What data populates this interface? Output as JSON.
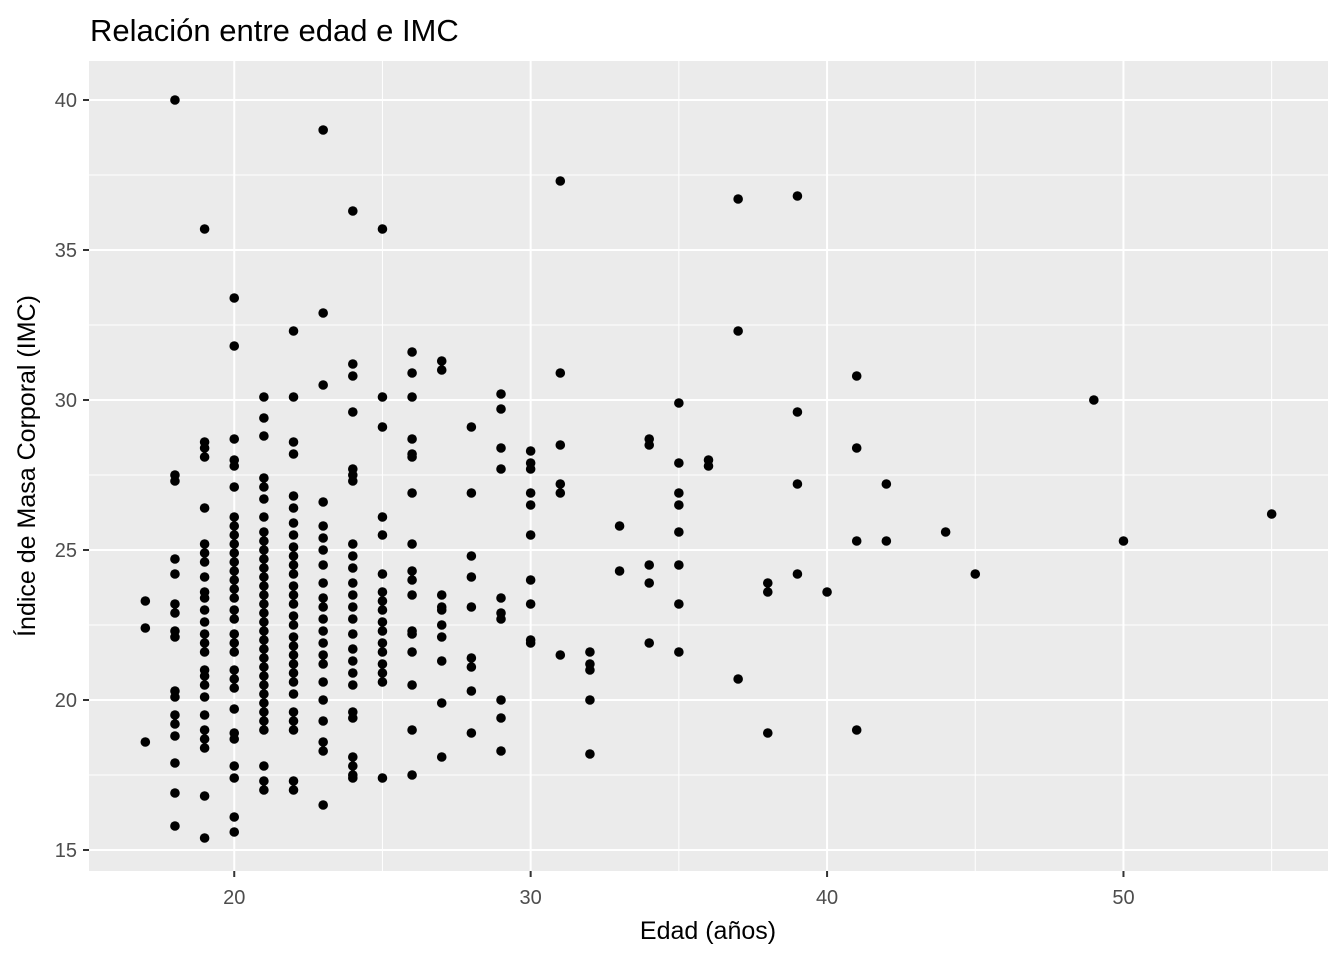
{
  "chart_data": {
    "type": "scatter",
    "title": "Relación entre edad e IMC",
    "xlabel": "Edad (años)",
    "ylabel": "Índice de Masa Corporal (IMC)",
    "xlim": [
      15.1,
      56.9
    ],
    "ylim": [
      14.3,
      41.3
    ],
    "x_ticks": [
      20,
      30,
      40,
      50
    ],
    "x_tick_labels": [
      "20",
      "30",
      "40",
      "50"
    ],
    "y_ticks": [
      15,
      20,
      25,
      30,
      35,
      40
    ],
    "y_tick_labels": [
      "15",
      "20",
      "25",
      "30",
      "35",
      "40"
    ],
    "grid": true,
    "panel_color": "#ebebeb",
    "grid_color": "#ffffff",
    "point_color": "#000000",
    "points": [
      {
        "x": 17,
        "y": 23.3
      },
      {
        "x": 17,
        "y": 22.4
      },
      {
        "x": 17,
        "y": 18.6
      },
      {
        "x": 18,
        "y": 40.0
      },
      {
        "x": 18,
        "y": 27.5
      },
      {
        "x": 18,
        "y": 27.3
      },
      {
        "x": 18,
        "y": 24.7
      },
      {
        "x": 18,
        "y": 24.2
      },
      {
        "x": 18,
        "y": 23.2
      },
      {
        "x": 18,
        "y": 22.9
      },
      {
        "x": 18,
        "y": 22.3
      },
      {
        "x": 18,
        "y": 22.1
      },
      {
        "x": 18,
        "y": 20.3
      },
      {
        "x": 18,
        "y": 20.1
      },
      {
        "x": 18,
        "y": 19.5
      },
      {
        "x": 18,
        "y": 19.2
      },
      {
        "x": 18,
        "y": 18.8
      },
      {
        "x": 18,
        "y": 17.9
      },
      {
        "x": 18,
        "y": 16.9
      },
      {
        "x": 18,
        "y": 15.8
      },
      {
        "x": 19,
        "y": 35.7
      },
      {
        "x": 19,
        "y": 28.6
      },
      {
        "x": 19,
        "y": 28.4
      },
      {
        "x": 19,
        "y": 28.1
      },
      {
        "x": 19,
        "y": 26.4
      },
      {
        "x": 19,
        "y": 25.2
      },
      {
        "x": 19,
        "y": 24.9
      },
      {
        "x": 19,
        "y": 24.6
      },
      {
        "x": 19,
        "y": 24.1
      },
      {
        "x": 19,
        "y": 23.6
      },
      {
        "x": 19,
        "y": 23.4
      },
      {
        "x": 19,
        "y": 23.0
      },
      {
        "x": 19,
        "y": 22.6
      },
      {
        "x": 19,
        "y": 22.2
      },
      {
        "x": 19,
        "y": 21.9
      },
      {
        "x": 19,
        "y": 21.6
      },
      {
        "x": 19,
        "y": 21.0
      },
      {
        "x": 19,
        "y": 20.8
      },
      {
        "x": 19,
        "y": 20.5
      },
      {
        "x": 19,
        "y": 20.1
      },
      {
        "x": 19,
        "y": 19.5
      },
      {
        "x": 19,
        "y": 19.0
      },
      {
        "x": 19,
        "y": 18.7
      },
      {
        "x": 19,
        "y": 18.4
      },
      {
        "x": 19,
        "y": 16.8
      },
      {
        "x": 19,
        "y": 15.4
      },
      {
        "x": 20,
        "y": 33.4
      },
      {
        "x": 20,
        "y": 31.8
      },
      {
        "x": 20,
        "y": 28.7
      },
      {
        "x": 20,
        "y": 28.0
      },
      {
        "x": 20,
        "y": 27.8
      },
      {
        "x": 20,
        "y": 27.1
      },
      {
        "x": 20,
        "y": 26.1
      },
      {
        "x": 20,
        "y": 25.8
      },
      {
        "x": 20,
        "y": 25.5
      },
      {
        "x": 20,
        "y": 25.2
      },
      {
        "x": 20,
        "y": 24.9
      },
      {
        "x": 20,
        "y": 24.6
      },
      {
        "x": 20,
        "y": 24.3
      },
      {
        "x": 20,
        "y": 24.0
      },
      {
        "x": 20,
        "y": 23.7
      },
      {
        "x": 20,
        "y": 23.4
      },
      {
        "x": 20,
        "y": 23.0
      },
      {
        "x": 20,
        "y": 22.7
      },
      {
        "x": 20,
        "y": 22.2
      },
      {
        "x": 20,
        "y": 21.9
      },
      {
        "x": 20,
        "y": 21.6
      },
      {
        "x": 20,
        "y": 21.0
      },
      {
        "x": 20,
        "y": 20.7
      },
      {
        "x": 20,
        "y": 20.4
      },
      {
        "x": 20,
        "y": 19.7
      },
      {
        "x": 20,
        "y": 18.9
      },
      {
        "x": 20,
        "y": 18.7
      },
      {
        "x": 20,
        "y": 17.8
      },
      {
        "x": 20,
        "y": 17.4
      },
      {
        "x": 20,
        "y": 16.1
      },
      {
        "x": 20,
        "y": 15.6
      },
      {
        "x": 21,
        "y": 30.1
      },
      {
        "x": 21,
        "y": 29.4
      },
      {
        "x": 21,
        "y": 28.8
      },
      {
        "x": 21,
        "y": 27.4
      },
      {
        "x": 21,
        "y": 27.1
      },
      {
        "x": 21,
        "y": 26.7
      },
      {
        "x": 21,
        "y": 26.1
      },
      {
        "x": 21,
        "y": 25.6
      },
      {
        "x": 21,
        "y": 25.3
      },
      {
        "x": 21,
        "y": 25.0
      },
      {
        "x": 21,
        "y": 24.7
      },
      {
        "x": 21,
        "y": 24.4
      },
      {
        "x": 21,
        "y": 24.1
      },
      {
        "x": 21,
        "y": 23.8
      },
      {
        "x": 21,
        "y": 23.5
      },
      {
        "x": 21,
        "y": 23.2
      },
      {
        "x": 21,
        "y": 22.9
      },
      {
        "x": 21,
        "y": 22.6
      },
      {
        "x": 21,
        "y": 22.3
      },
      {
        "x": 21,
        "y": 22.0
      },
      {
        "x": 21,
        "y": 21.7
      },
      {
        "x": 21,
        "y": 21.4
      },
      {
        "x": 21,
        "y": 21.1
      },
      {
        "x": 21,
        "y": 20.8
      },
      {
        "x": 21,
        "y": 20.5
      },
      {
        "x": 21,
        "y": 20.2
      },
      {
        "x": 21,
        "y": 19.9
      },
      {
        "x": 21,
        "y": 19.6
      },
      {
        "x": 21,
        "y": 19.3
      },
      {
        "x": 21,
        "y": 19.0
      },
      {
        "x": 21,
        "y": 17.8
      },
      {
        "x": 21,
        "y": 17.3
      },
      {
        "x": 21,
        "y": 17.0
      },
      {
        "x": 22,
        "y": 32.3
      },
      {
        "x": 22,
        "y": 30.1
      },
      {
        "x": 22,
        "y": 28.6
      },
      {
        "x": 22,
        "y": 28.2
      },
      {
        "x": 22,
        "y": 26.8
      },
      {
        "x": 22,
        "y": 26.4
      },
      {
        "x": 22,
        "y": 25.9
      },
      {
        "x": 22,
        "y": 25.5
      },
      {
        "x": 22,
        "y": 25.1
      },
      {
        "x": 22,
        "y": 24.8
      },
      {
        "x": 22,
        "y": 24.5
      },
      {
        "x": 22,
        "y": 24.2
      },
      {
        "x": 22,
        "y": 23.8
      },
      {
        "x": 22,
        "y": 23.5
      },
      {
        "x": 22,
        "y": 23.2
      },
      {
        "x": 22,
        "y": 22.8
      },
      {
        "x": 22,
        "y": 22.5
      },
      {
        "x": 22,
        "y": 22.1
      },
      {
        "x": 22,
        "y": 21.8
      },
      {
        "x": 22,
        "y": 21.5
      },
      {
        "x": 22,
        "y": 21.2
      },
      {
        "x": 22,
        "y": 20.9
      },
      {
        "x": 22,
        "y": 20.6
      },
      {
        "x": 22,
        "y": 20.2
      },
      {
        "x": 22,
        "y": 19.6
      },
      {
        "x": 22,
        "y": 19.3
      },
      {
        "x": 22,
        "y": 19.0
      },
      {
        "x": 22,
        "y": 17.3
      },
      {
        "x": 22,
        "y": 17.0
      },
      {
        "x": 23,
        "y": 39.0
      },
      {
        "x": 23,
        "y": 32.9
      },
      {
        "x": 23,
        "y": 30.5
      },
      {
        "x": 23,
        "y": 26.6
      },
      {
        "x": 23,
        "y": 25.8
      },
      {
        "x": 23,
        "y": 25.4
      },
      {
        "x": 23,
        "y": 25.0
      },
      {
        "x": 23,
        "y": 24.5
      },
      {
        "x": 23,
        "y": 23.9
      },
      {
        "x": 23,
        "y": 23.4
      },
      {
        "x": 23,
        "y": 23.1
      },
      {
        "x": 23,
        "y": 22.7
      },
      {
        "x": 23,
        "y": 22.3
      },
      {
        "x": 23,
        "y": 21.9
      },
      {
        "x": 23,
        "y": 21.5
      },
      {
        "x": 23,
        "y": 21.2
      },
      {
        "x": 23,
        "y": 20.6
      },
      {
        "x": 23,
        "y": 20.0
      },
      {
        "x": 23,
        "y": 19.3
      },
      {
        "x": 23,
        "y": 18.6
      },
      {
        "x": 23,
        "y": 18.3
      },
      {
        "x": 23,
        "y": 16.5
      },
      {
        "x": 24,
        "y": 36.3
      },
      {
        "x": 24,
        "y": 31.2
      },
      {
        "x": 24,
        "y": 30.8
      },
      {
        "x": 24,
        "y": 29.6
      },
      {
        "x": 24,
        "y": 27.7
      },
      {
        "x": 24,
        "y": 27.5
      },
      {
        "x": 24,
        "y": 27.3
      },
      {
        "x": 24,
        "y": 25.2
      },
      {
        "x": 24,
        "y": 24.8
      },
      {
        "x": 24,
        "y": 24.4
      },
      {
        "x": 24,
        "y": 23.9
      },
      {
        "x": 24,
        "y": 23.5
      },
      {
        "x": 24,
        "y": 23.1
      },
      {
        "x": 24,
        "y": 22.7
      },
      {
        "x": 24,
        "y": 22.2
      },
      {
        "x": 24,
        "y": 21.7
      },
      {
        "x": 24,
        "y": 21.3
      },
      {
        "x": 24,
        "y": 20.9
      },
      {
        "x": 24,
        "y": 20.5
      },
      {
        "x": 24,
        "y": 19.6
      },
      {
        "x": 24,
        "y": 19.4
      },
      {
        "x": 24,
        "y": 18.1
      },
      {
        "x": 24,
        "y": 17.8
      },
      {
        "x": 24,
        "y": 17.5
      },
      {
        "x": 24,
        "y": 17.4
      },
      {
        "x": 25,
        "y": 35.7
      },
      {
        "x": 25,
        "y": 30.1
      },
      {
        "x": 25,
        "y": 29.1
      },
      {
        "x": 25,
        "y": 26.1
      },
      {
        "x": 25,
        "y": 25.5
      },
      {
        "x": 25,
        "y": 24.2
      },
      {
        "x": 25,
        "y": 23.6
      },
      {
        "x": 25,
        "y": 23.3
      },
      {
        "x": 25,
        "y": 23.0
      },
      {
        "x": 25,
        "y": 22.6
      },
      {
        "x": 25,
        "y": 22.3
      },
      {
        "x": 25,
        "y": 21.9
      },
      {
        "x": 25,
        "y": 21.6
      },
      {
        "x": 25,
        "y": 21.2
      },
      {
        "x": 25,
        "y": 20.9
      },
      {
        "x": 25,
        "y": 20.6
      },
      {
        "x": 25,
        "y": 17.4
      },
      {
        "x": 26,
        "y": 31.6
      },
      {
        "x": 26,
        "y": 30.9
      },
      {
        "x": 26,
        "y": 30.1
      },
      {
        "x": 26,
        "y": 28.7
      },
      {
        "x": 26,
        "y": 28.2
      },
      {
        "x": 26,
        "y": 28.1
      },
      {
        "x": 26,
        "y": 26.9
      },
      {
        "x": 26,
        "y": 25.2
      },
      {
        "x": 26,
        "y": 24.3
      },
      {
        "x": 26,
        "y": 24.0
      },
      {
        "x": 26,
        "y": 23.5
      },
      {
        "x": 26,
        "y": 22.3
      },
      {
        "x": 26,
        "y": 22.2
      },
      {
        "x": 26,
        "y": 21.6
      },
      {
        "x": 26,
        "y": 20.5
      },
      {
        "x": 26,
        "y": 19.0
      },
      {
        "x": 26,
        "y": 17.5
      },
      {
        "x": 27,
        "y": 31.3
      },
      {
        "x": 27,
        "y": 31.0
      },
      {
        "x": 27,
        "y": 23.5
      },
      {
        "x": 27,
        "y": 23.1
      },
      {
        "x": 27,
        "y": 23.0
      },
      {
        "x": 27,
        "y": 22.5
      },
      {
        "x": 27,
        "y": 22.1
      },
      {
        "x": 27,
        "y": 21.3
      },
      {
        "x": 27,
        "y": 19.9
      },
      {
        "x": 27,
        "y": 18.1
      },
      {
        "x": 28,
        "y": 29.1
      },
      {
        "x": 28,
        "y": 26.9
      },
      {
        "x": 28,
        "y": 24.8
      },
      {
        "x": 28,
        "y": 24.1
      },
      {
        "x": 28,
        "y": 23.1
      },
      {
        "x": 28,
        "y": 21.4
      },
      {
        "x": 28,
        "y": 21.1
      },
      {
        "x": 28,
        "y": 20.3
      },
      {
        "x": 28,
        "y": 18.9
      },
      {
        "x": 29,
        "y": 30.2
      },
      {
        "x": 29,
        "y": 29.7
      },
      {
        "x": 29,
        "y": 28.4
      },
      {
        "x": 29,
        "y": 27.7
      },
      {
        "x": 29,
        "y": 23.4
      },
      {
        "x": 29,
        "y": 22.9
      },
      {
        "x": 29,
        "y": 22.7
      },
      {
        "x": 29,
        "y": 20.0
      },
      {
        "x": 29,
        "y": 19.4
      },
      {
        "x": 29,
        "y": 18.3
      },
      {
        "x": 30,
        "y": 28.3
      },
      {
        "x": 30,
        "y": 27.9
      },
      {
        "x": 30,
        "y": 27.7
      },
      {
        "x": 30,
        "y": 26.9
      },
      {
        "x": 30,
        "y": 26.5
      },
      {
        "x": 30,
        "y": 25.5
      },
      {
        "x": 30,
        "y": 24.0
      },
      {
        "x": 30,
        "y": 23.2
      },
      {
        "x": 30,
        "y": 22.0
      },
      {
        "x": 30,
        "y": 21.9
      },
      {
        "x": 31,
        "y": 37.3
      },
      {
        "x": 31,
        "y": 30.9
      },
      {
        "x": 31,
        "y": 28.5
      },
      {
        "x": 31,
        "y": 27.2
      },
      {
        "x": 31,
        "y": 26.9
      },
      {
        "x": 31,
        "y": 21.5
      },
      {
        "x": 32,
        "y": 21.6
      },
      {
        "x": 32,
        "y": 21.2
      },
      {
        "x": 32,
        "y": 21.0
      },
      {
        "x": 32,
        "y": 20.0
      },
      {
        "x": 32,
        "y": 18.2
      },
      {
        "x": 33,
        "y": 25.8
      },
      {
        "x": 33,
        "y": 24.3
      },
      {
        "x": 34,
        "y": 28.7
      },
      {
        "x": 34,
        "y": 28.5
      },
      {
        "x": 34,
        "y": 24.5
      },
      {
        "x": 34,
        "y": 23.9
      },
      {
        "x": 34,
        "y": 21.9
      },
      {
        "x": 35,
        "y": 29.9
      },
      {
        "x": 35,
        "y": 27.9
      },
      {
        "x": 35,
        "y": 26.9
      },
      {
        "x": 35,
        "y": 26.5
      },
      {
        "x": 35,
        "y": 25.6
      },
      {
        "x": 35,
        "y": 24.5
      },
      {
        "x": 35,
        "y": 23.2
      },
      {
        "x": 35,
        "y": 21.6
      },
      {
        "x": 36,
        "y": 28.0
      },
      {
        "x": 36,
        "y": 27.8
      },
      {
        "x": 37,
        "y": 36.7
      },
      {
        "x": 37,
        "y": 32.3
      },
      {
        "x": 37,
        "y": 20.7
      },
      {
        "x": 38,
        "y": 23.9
      },
      {
        "x": 38,
        "y": 23.6
      },
      {
        "x": 38,
        "y": 18.9
      },
      {
        "x": 39,
        "y": 36.8
      },
      {
        "x": 39,
        "y": 29.6
      },
      {
        "x": 39,
        "y": 27.2
      },
      {
        "x": 39,
        "y": 24.2
      },
      {
        "x": 40,
        "y": 23.6
      },
      {
        "x": 41,
        "y": 30.8
      },
      {
        "x": 41,
        "y": 28.4
      },
      {
        "x": 41,
        "y": 25.3
      },
      {
        "x": 41,
        "y": 19.0
      },
      {
        "x": 42,
        "y": 27.2
      },
      {
        "x": 42,
        "y": 25.3
      },
      {
        "x": 44,
        "y": 25.6
      },
      {
        "x": 45,
        "y": 24.2
      },
      {
        "x": 49,
        "y": 30.0
      },
      {
        "x": 50,
        "y": 25.3
      },
      {
        "x": 55,
        "y": 26.2
      }
    ]
  }
}
